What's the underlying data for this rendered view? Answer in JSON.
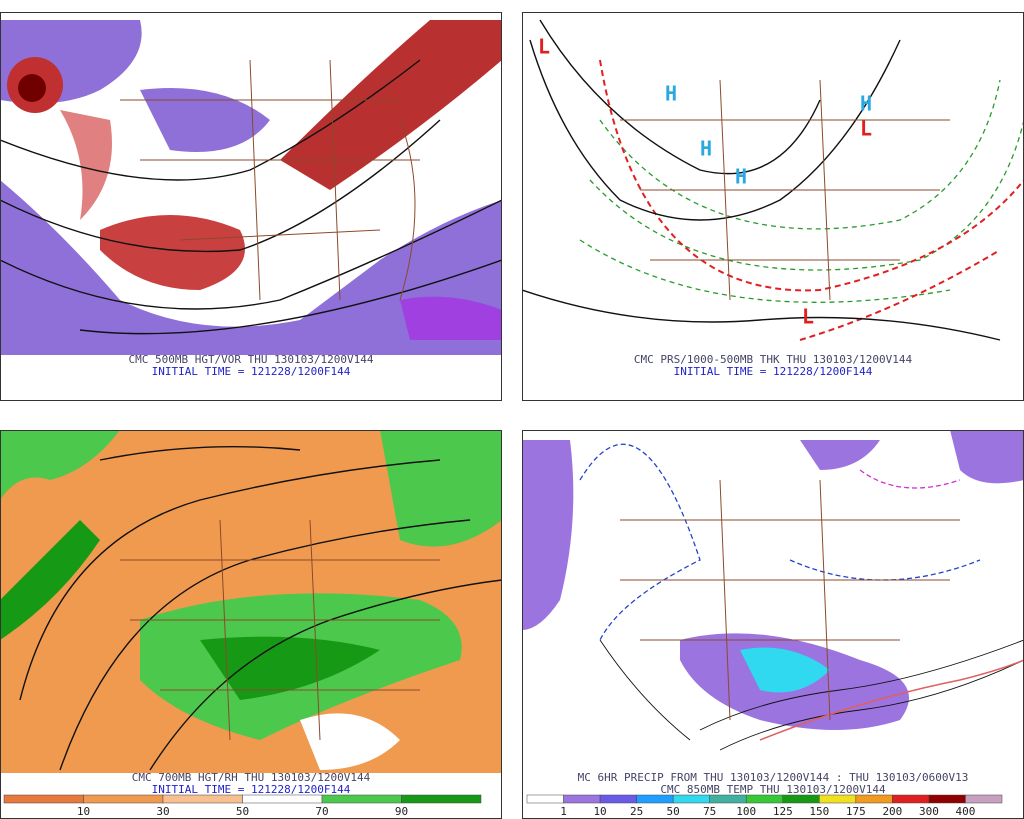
{
  "panels": [
    {
      "title": "CMC 500MB HGT/VOR THU 130103/1200V144",
      "subtitle": "INITIAL TIME = 121228/1200F144"
    },
    {
      "title": "CMC PRS/1000-500MB THK THU 130103/1200V144",
      "subtitle": "INITIAL TIME = 121228/1200F144"
    },
    {
      "title": "CMC 700MB HGT/RH THU 130103/1200V144",
      "subtitle": "INITIAL TIME = 121228/1200F144"
    },
    {
      "title": "MC 6HR PRECIP FROM THU 130103/1200V144 : THU 130103/0600V13",
      "subtitle": "CMC 850MB TEMP THU 130103/1200V144"
    }
  ],
  "rh_legend": {
    "labels": [
      10,
      30,
      50,
      70,
      90
    ],
    "colors": [
      "#e8783c",
      "#f09a50",
      "#f8c090",
      "#ffffff",
      "#4cc84c",
      "#169a16"
    ]
  },
  "precip_legend": {
    "labels": [
      1,
      10,
      25,
      50,
      75,
      100,
      125,
      150,
      175,
      200,
      300,
      400
    ],
    "colors": [
      "#ffffff",
      "#9b74e0",
      "#6a5ae8",
      "#1e9eff",
      "#30d8f0",
      "#40b0a0",
      "#36c836",
      "#169a16",
      "#f0e020",
      "#f09a20",
      "#e02020",
      "#900000",
      "#c8a0c0"
    ]
  }
}
